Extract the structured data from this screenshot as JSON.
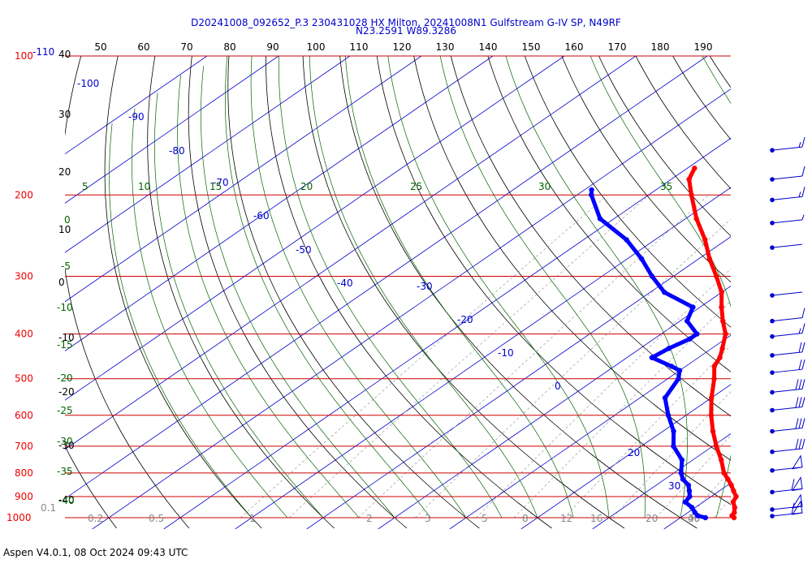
{
  "title": {
    "line1": "D20241008_092652_P.3 230431028 HX Milton, 20241008N1 Gulfstream G-IV SP, N49RF",
    "line2": "N23.2591 W89.3286"
  },
  "footer": "Aspen V4.0.1, 08 Oct 2024  09:43 UTC",
  "colors": {
    "temperature": "#ff0000",
    "dewpoint": "#0000ff",
    "isobar": "#cc0000",
    "isotherm": "#0000cc",
    "dry_adiabat": "#000000",
    "moist_adiabat": "#006400",
    "mixing_ratio": "#999999",
    "title": "#0000cc",
    "wind_barb": "#0000cc"
  },
  "chart_data": {
    "type": "skew-t log-p",
    "pressure_levels_hpa": [
      100,
      200,
      300,
      400,
      500,
      600,
      700,
      800,
      900,
      1000
    ],
    "pressure_label_110": "-110",
    "top_theta_labels": [
      "50",
      "60",
      "70",
      "80",
      "90",
      "100",
      "110",
      "120",
      "130",
      "140",
      "150",
      "160",
      "170",
      "180",
      "190"
    ],
    "left_theta_labels": [
      "40",
      "30",
      "20",
      "10",
      "0",
      "-10",
      "-20",
      "-30",
      "-40"
    ],
    "isotherm_labels": [
      "-100",
      "-90",
      "-80",
      "-70",
      "-60",
      "-50",
      "-40",
      "-30",
      "-20",
      "-10",
      "0",
      "20",
      "30"
    ],
    "moist_adiabat_top_labels": [
      "5",
      "10",
      "15",
      "20",
      "25",
      "30",
      "35"
    ],
    "moist_adiabat_left_labels": [
      "0",
      "-5",
      "-10",
      "-15",
      "-20",
      "-25",
      "-30",
      "-35",
      "-40"
    ],
    "mixing_ratio_labels": [
      "0.1",
      "0.2",
      "0.5",
      "1",
      "2",
      "3",
      "5",
      "8",
      "12",
      "16",
      "20",
      "30",
      "40"
    ],
    "temperature_profile": [
      {
        "p": 1000,
        "t": 27.5
      },
      {
        "p": 990,
        "t": 26.8
      },
      {
        "p": 975,
        "t": 26.5
      },
      {
        "p": 950,
        "t": 25.5
      },
      {
        "p": 925,
        "t": 24.2
      },
      {
        "p": 900,
        "t": 23.5
      },
      {
        "p": 875,
        "t": 22.0
      },
      {
        "p": 850,
        "t": 20.5
      },
      {
        "p": 825,
        "t": 18.8
      },
      {
        "p": 800,
        "t": 17.0
      },
      {
        "p": 750,
        "t": 14.0
      },
      {
        "p": 700,
        "t": 10.5
      },
      {
        "p": 650,
        "t": 7.0
      },
      {
        "p": 600,
        "t": 3.5
      },
      {
        "p": 550,
        "t": 0.0
      },
      {
        "p": 500,
        "t": -3.5
      },
      {
        "p": 470,
        "t": -6.0
      },
      {
        "p": 450,
        "t": -7.0
      },
      {
        "p": 430,
        "t": -8.5
      },
      {
        "p": 400,
        "t": -11.0
      },
      {
        "p": 375,
        "t": -14.0
      },
      {
        "p": 350,
        "t": -17.0
      },
      {
        "p": 325,
        "t": -20.0
      },
      {
        "p": 300,
        "t": -24.0
      },
      {
        "p": 275,
        "t": -28.5
      },
      {
        "p": 250,
        "t": -33.0
      },
      {
        "p": 225,
        "t": -38.5
      },
      {
        "p": 200,
        "t": -44.0
      },
      {
        "p": 185,
        "t": -47.5
      },
      {
        "p": 175,
        "t": -49.0
      }
    ],
    "dewpoint_profile": [
      {
        "p": 1000,
        "td": 23.5
      },
      {
        "p": 990,
        "td": 22.0
      },
      {
        "p": 975,
        "td": 21.0
      },
      {
        "p": 950,
        "td": 19.5
      },
      {
        "p": 925,
        "td": 17.5
      },
      {
        "p": 900,
        "td": 17.0
      },
      {
        "p": 875,
        "td": 15.8
      },
      {
        "p": 850,
        "td": 14.5
      },
      {
        "p": 825,
        "td": 12.5
      },
      {
        "p": 800,
        "td": 11.0
      },
      {
        "p": 750,
        "td": 8.5
      },
      {
        "p": 700,
        "td": 4.5
      },
      {
        "p": 650,
        "td": 1.5
      },
      {
        "p": 600,
        "td": -2.5
      },
      {
        "p": 550,
        "td": -6.5
      },
      {
        "p": 500,
        "td": -8.5
      },
      {
        "p": 480,
        "td": -10.0
      },
      {
        "p": 470,
        "td": -12.0
      },
      {
        "p": 450,
        "td": -16.5
      },
      {
        "p": 430,
        "td": -16.0
      },
      {
        "p": 410,
        "td": -15.0
      },
      {
        "p": 400,
        "td": -15.0
      },
      {
        "p": 375,
        "td": -19.0
      },
      {
        "p": 350,
        "td": -21.0
      },
      {
        "p": 325,
        "td": -28.0
      },
      {
        "p": 300,
        "td": -33.0
      },
      {
        "p": 275,
        "td": -38.0
      },
      {
        "p": 250,
        "td": -44.0
      },
      {
        "p": 225,
        "td": -52.0
      },
      {
        "p": 200,
        "td": -58.0
      },
      {
        "p": 195,
        "td": -59.0
      }
    ],
    "wind_barbs": [
      {
        "p": 160,
        "barbs": 1,
        "flags": 0,
        "half": true
      },
      {
        "p": 185,
        "barbs": 1,
        "flags": 0,
        "half": false
      },
      {
        "p": 205,
        "barbs": 1,
        "flags": 0,
        "half": true
      },
      {
        "p": 230,
        "barbs": 0,
        "flags": 0,
        "half": true
      },
      {
        "p": 260,
        "barbs": 0,
        "flags": 0,
        "half": false
      },
      {
        "p": 330,
        "barbs": 0,
        "flags": 0,
        "half": false
      },
      {
        "p": 375,
        "barbs": 1,
        "flags": 0,
        "half": false
      },
      {
        "p": 405,
        "barbs": 1,
        "flags": 0,
        "half": true
      },
      {
        "p": 445,
        "barbs": 2,
        "flags": 0,
        "half": false
      },
      {
        "p": 485,
        "barbs": 2,
        "flags": 0,
        "half": false
      },
      {
        "p": 535,
        "barbs": 3,
        "flags": 0,
        "half": false
      },
      {
        "p": 585,
        "barbs": 3,
        "flags": 0,
        "half": false
      },
      {
        "p": 650,
        "barbs": 3,
        "flags": 0,
        "half": false
      },
      {
        "p": 720,
        "barbs": 3,
        "flags": 0,
        "half": false
      },
      {
        "p": 790,
        "barbs": 0,
        "flags": 1,
        "half": false
      },
      {
        "p": 880,
        "barbs": 1,
        "flags": 1,
        "half": false
      },
      {
        "p": 960,
        "barbs": 0,
        "flags": 1,
        "half": false
      },
      {
        "p": 1005,
        "barbs": 1,
        "flags": 1,
        "half": false
      }
    ]
  }
}
